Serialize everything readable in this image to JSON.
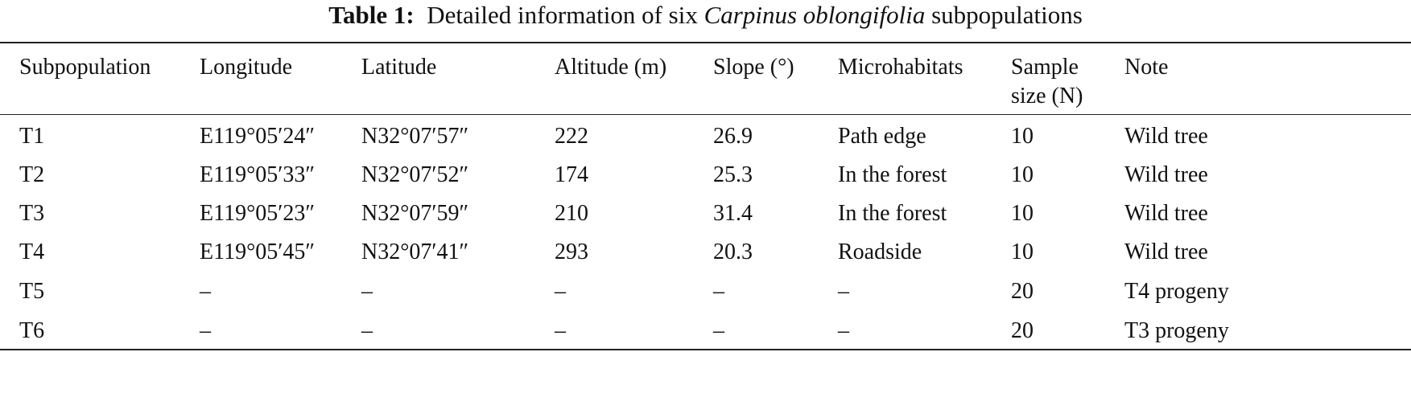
{
  "caption": {
    "label": "Table 1:",
    "text_before": "Detailed information of six",
    "species": "Carpinus oblongifolia",
    "text_after": "subpopulations"
  },
  "table": {
    "headers": [
      [
        "Subpopulation"
      ],
      [
        "Longitude"
      ],
      [
        "Latitude"
      ],
      [
        "Altitude (m)"
      ],
      [
        "Slope (°)"
      ],
      [
        "Microhabitats"
      ],
      [
        "Sample",
        "size (N)"
      ],
      [
        "Note"
      ]
    ],
    "rows": [
      [
        "T1",
        "E119°05′24″",
        "N32°07′57″",
        "222",
        "26.9",
        "Path edge",
        "10",
        "Wild tree"
      ],
      [
        "T2",
        "E119°05′33″",
        "N32°07′52″",
        "174",
        "25.3",
        "In the forest",
        "10",
        "Wild tree"
      ],
      [
        "T3",
        "E119°05′23″",
        "N32°07′59″",
        "210",
        "31.4",
        "In the forest",
        "10",
        "Wild tree"
      ],
      [
        "T4",
        "E119°05′45″",
        "N32°07′41″",
        "293",
        "20.3",
        "Roadside",
        "10",
        "Wild tree"
      ],
      [
        "T5",
        "–",
        "–",
        "–",
        "–",
        "–",
        "20",
        "T4 progeny"
      ],
      [
        "T6",
        "–",
        "–",
        "–",
        "–",
        "–",
        "20",
        "T3 progeny"
      ]
    ]
  }
}
